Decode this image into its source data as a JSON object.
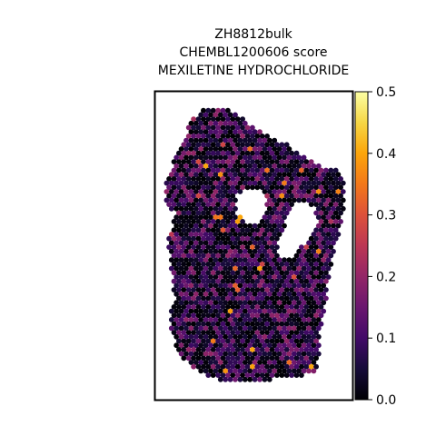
{
  "title_lines": [
    "ZH8812bulk",
    "CHEMBL1200606 score",
    "MEXILETINE HYDROCHLORIDE"
  ],
  "chart_data": {
    "type": "heatmap",
    "subtype": "spatial-hexbin",
    "title": "ZH8812bulk\nCHEMBL1200606 score\nMEXILETINE HYDROCHLORIDE",
    "xlabel": "",
    "ylabel": "",
    "colormap": "inferno",
    "colorbar": {
      "vmin": 0.0,
      "vmax": 0.5,
      "ticks": [
        0.0,
        0.1,
        0.2,
        0.3,
        0.4,
        0.5
      ],
      "tick_labels": [
        "0.0",
        "0.1",
        "0.2",
        "0.3",
        "0.4",
        "0.5"
      ]
    },
    "grid": false,
    "value_distribution": {
      "typical_range": [
        0.0,
        0.2
      ],
      "max_observed_approx": 0.45
    }
  }
}
